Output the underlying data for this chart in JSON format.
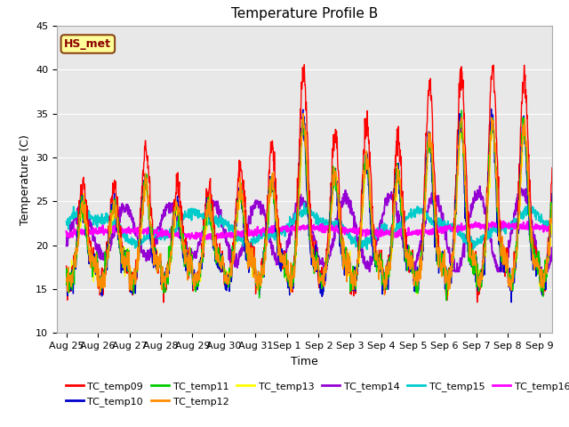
{
  "title": "Temperature Profile B",
  "xlabel": "Time",
  "ylabel": "Temperature (C)",
  "ylim": [
    10,
    45
  ],
  "background_color": "#ffffff",
  "plot_bg_color": "#e8e8e8",
  "annotation_text": "HS_met",
  "annotation_color": "#8B0000",
  "annotation_bg": "#ffff99",
  "annotation_border": "#8B4513",
  "series_colors": {
    "TC_temp09": "#ff0000",
    "TC_temp10": "#0000cd",
    "TC_temp11": "#00cc00",
    "TC_temp12": "#ff8c00",
    "TC_temp13": "#ffff00",
    "TC_temp14": "#9400d3",
    "TC_temp15": "#00cccc",
    "TC_temp16": "#ff00ff"
  },
  "x_tick_labels": [
    "Aug 25",
    "Aug 26",
    "Aug 27",
    "Aug 28",
    "Aug 29",
    "Aug 30",
    "Aug 31",
    "Sep 1",
    "Sep 2",
    "Sep 3",
    "Sep 4",
    "Sep 5",
    "Sep 6",
    "Sep 7",
    "Sep 8",
    "Sep 9"
  ],
  "x_tick_positions": [
    0,
    1,
    2,
    3,
    4,
    5,
    6,
    7,
    8,
    9,
    10,
    11,
    12,
    13,
    14,
    15
  ],
  "y_ticks": [
    10,
    15,
    20,
    25,
    30,
    35,
    40,
    45
  ],
  "title_fontsize": 11,
  "axis_fontsize": 9,
  "tick_fontsize": 8,
  "legend_fontsize": 8,
  "line_width": 1.0
}
